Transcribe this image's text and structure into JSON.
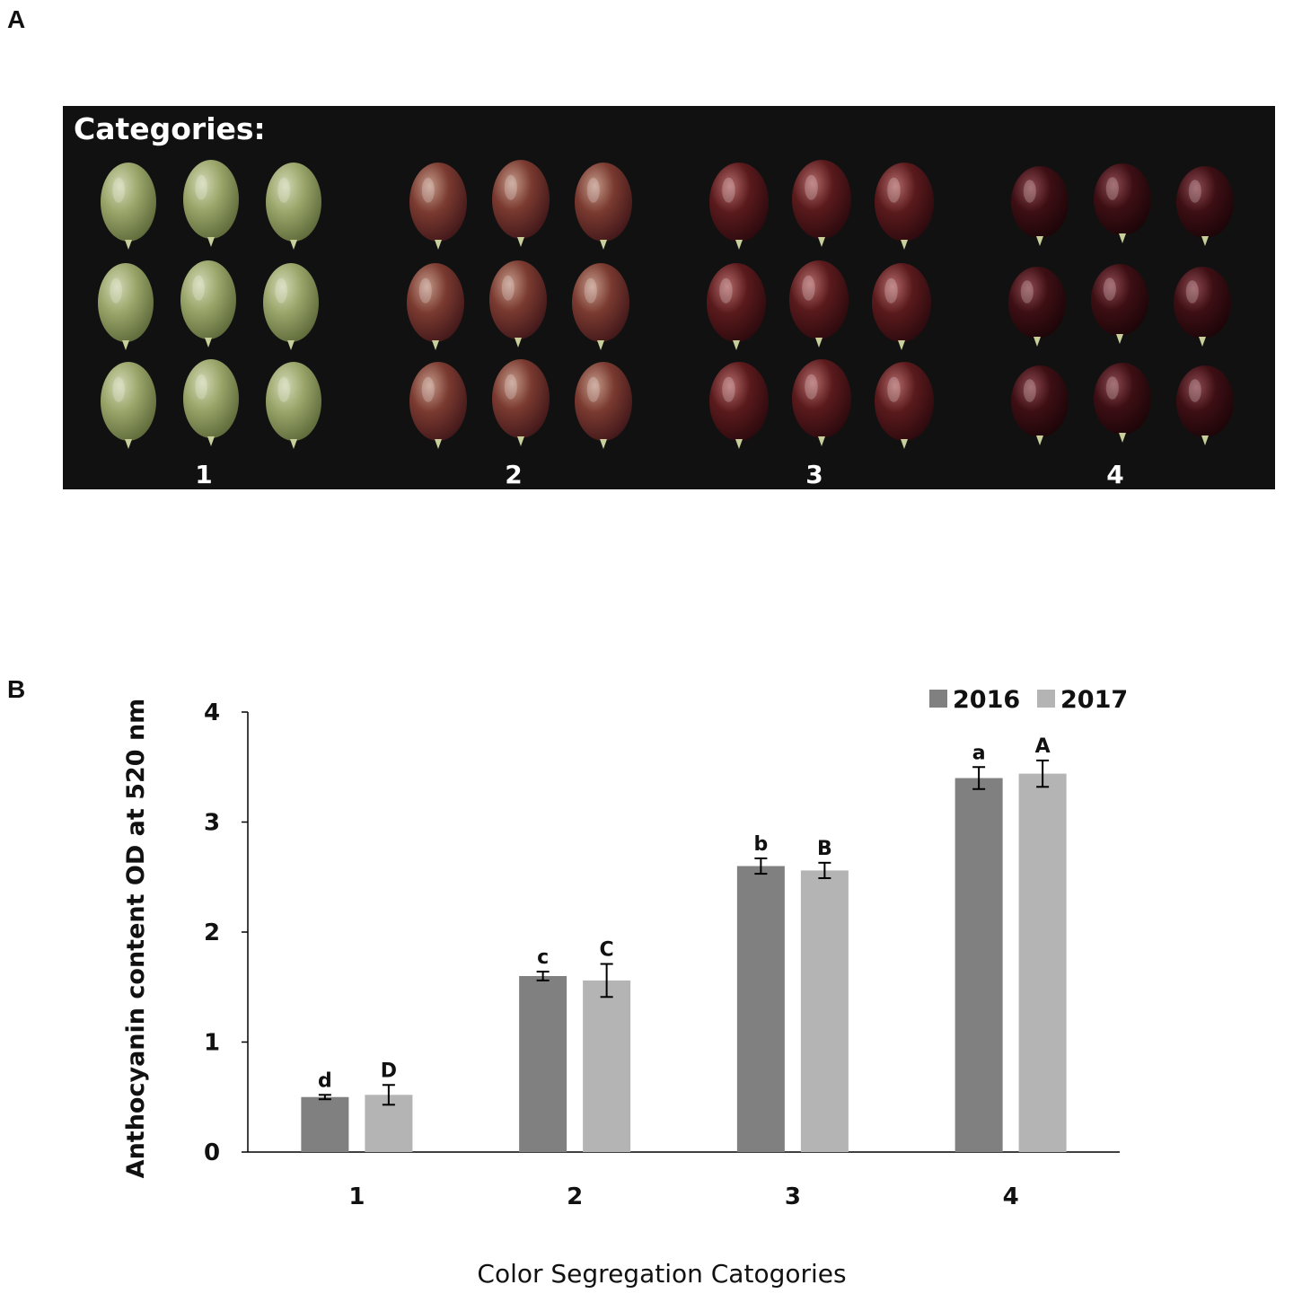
{
  "panels": {
    "a_label": "A",
    "b_label": "B"
  },
  "photo": {
    "caption": "Categories:",
    "group_labels": [
      "1",
      "2",
      "3",
      "4"
    ],
    "background_color": "#111111",
    "berry_colors": [
      "#9aa56a",
      "#7a3a30",
      "#5a1a1c",
      "#3d0f14"
    ]
  },
  "chart_data": {
    "type": "bar",
    "title": "",
    "xlabel": "Color Segregation Catogories",
    "ylabel": "Anthocyanin content OD at 520  nm",
    "categories": [
      "1",
      "2",
      "3",
      "4"
    ],
    "ylim": [
      0,
      4
    ],
    "yticks": [
      "0",
      "1",
      "2",
      "3",
      "4"
    ],
    "grid": false,
    "legend_position": "top-right",
    "series": [
      {
        "name": "2016",
        "color": "#808080",
        "values": [
          0.5,
          1.6,
          2.6,
          3.4
        ],
        "errors": [
          0.02,
          0.04,
          0.07,
          0.1
        ],
        "letters": [
          "d",
          "c",
          "b",
          "a"
        ]
      },
      {
        "name": "2017",
        "color": "#b4b4b4",
        "values": [
          0.52,
          1.56,
          2.56,
          3.44
        ],
        "errors": [
          0.09,
          0.15,
          0.07,
          0.12
        ],
        "letters": [
          "D",
          "C",
          "B",
          "A"
        ]
      }
    ]
  }
}
